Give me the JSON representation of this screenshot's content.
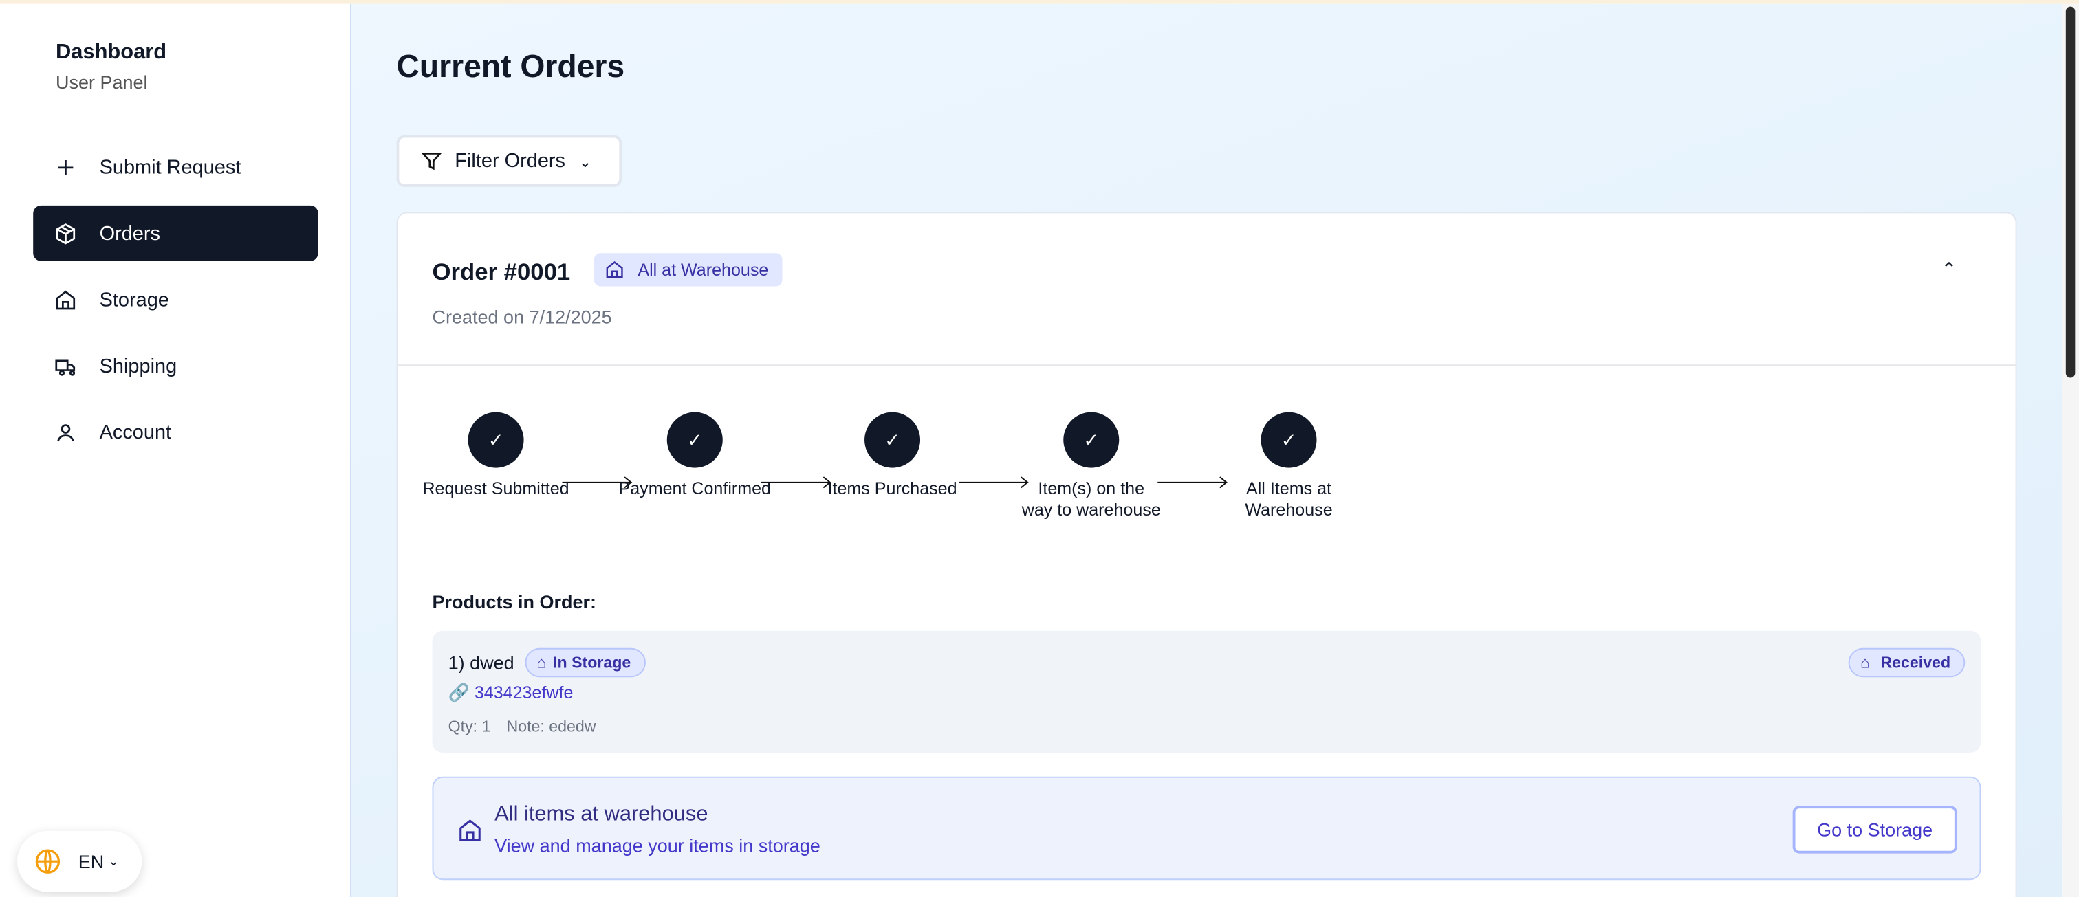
{
  "sidebar": {
    "title": "Dashboard",
    "subtitle": "User Panel",
    "items": [
      {
        "label": "Submit Request",
        "icon": "plus-icon"
      },
      {
        "label": "Orders",
        "icon": "package-icon",
        "active": true
      },
      {
        "label": "Storage",
        "icon": "home-icon"
      },
      {
        "label": "Shipping",
        "icon": "truck-icon"
      },
      {
        "label": "Account",
        "icon": "user-icon"
      }
    ],
    "language": "EN"
  },
  "main": {
    "title": "Current Orders",
    "filter_label": "Filter Orders",
    "order": {
      "title": "Order #0001",
      "status": "All at Warehouse",
      "created": "Created on 7/12/2025",
      "steps": [
        "Request Submitted",
        "Payment Confirmed",
        "Items Purchased",
        "Item(s) on the way to warehouse",
        "All Items at Warehouse"
      ],
      "products_heading": "Products in Order:",
      "products": [
        {
          "name": "1) dwed",
          "storage_badge": "In Storage",
          "link": "343423efwfe",
          "qty": "Qty: 1",
          "note": "Note: ededw",
          "status": "Received"
        }
      ],
      "notice": {
        "title": "All items at warehouse",
        "subtitle": "View and manage your items in storage",
        "button": "Go to Storage"
      }
    }
  },
  "colors": {
    "accent": "#111827",
    "badge_bg": "#e0e7ff",
    "badge_text": "#3730a3",
    "link": "#4338ca"
  }
}
